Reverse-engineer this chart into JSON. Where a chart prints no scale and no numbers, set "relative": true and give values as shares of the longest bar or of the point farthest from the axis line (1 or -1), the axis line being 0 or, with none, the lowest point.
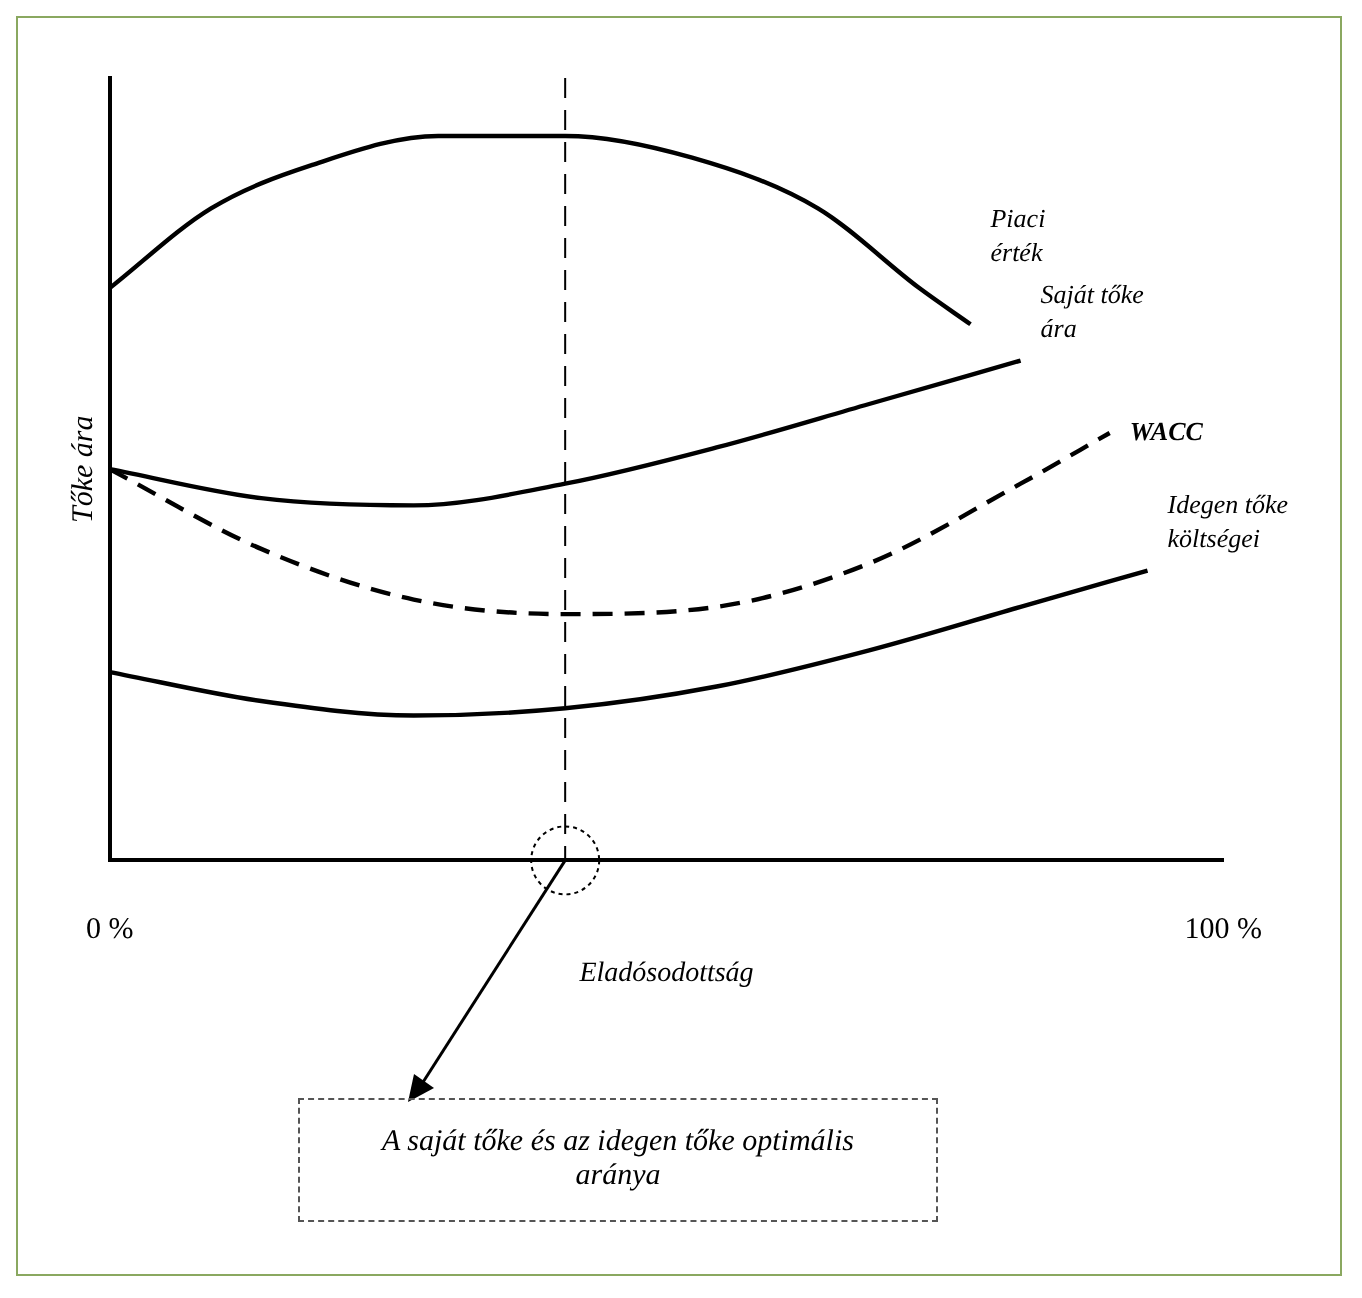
{
  "chart_data": {
    "type": "line",
    "relative": true,
    "ylabel": "Tőke ára",
    "xlabel": "Eladósodottság",
    "xlim": [
      0,
      100
    ],
    "xticks": [
      {
        "value": 0,
        "label": "0 %"
      },
      {
        "value": 100,
        "label": "100 %"
      }
    ],
    "grid": false,
    "legend": false,
    "marker": "none",
    "series": [
      {
        "name": "Piaci érték",
        "color": "#000000",
        "x": [
          0,
          9.1,
          18.2,
          29.5,
          40.9,
          52.3,
          63.6,
          72.7,
          77.3
        ],
        "values": [
          0.79,
          0.9,
          0.96,
          1.0,
          1.0,
          0.97,
          0.9,
          0.79,
          0.74
        ]
      },
      {
        "name": "Saját tőke ára",
        "color": "#000000",
        "x": [
          0,
          13.6,
          27.3,
          40.9,
          54.5,
          68.2,
          81.8
        ],
        "values": [
          0.54,
          0.5,
          0.49,
          0.52,
          0.57,
          0.63,
          0.69
        ]
      },
      {
        "name": "WACC",
        "color": "#000000",
        "line_style": "dashed",
        "x": [
          0,
          13.6,
          27.3,
          40.9,
          54.5,
          68.2,
          81.8,
          89.8
        ],
        "values": [
          0.54,
          0.43,
          0.36,
          0.34,
          0.35,
          0.41,
          0.52,
          0.59
        ]
      },
      {
        "name": "Idegen tőke költségei",
        "color": "#000000",
        "x": [
          0,
          13.6,
          27.3,
          40.9,
          54.5,
          68.2,
          81.8,
          93.2
        ],
        "values": [
          0.26,
          0.22,
          0.2,
          0.21,
          0.24,
          0.29,
          0.35,
          0.4
        ]
      }
    ],
    "ref_lines": [
      {
        "axis": "x",
        "value": 40.9,
        "line_style": "dashed",
        "color": "#000000"
      }
    ],
    "annotations": [
      "A saját tőke és az idegen tőke optimális aránya"
    ]
  }
}
